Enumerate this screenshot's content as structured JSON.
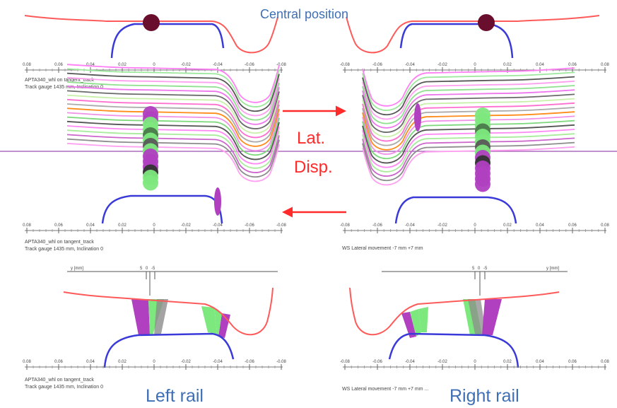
{
  "title": "Central position",
  "lateral_label_line1": "Lat.",
  "lateral_label_line2": "Disp.",
  "left_rail_label": "Left rail",
  "right_rail_label": "Right rail",
  "axis_ticks_left": [
    "0.08",
    "0.06",
    "0.04",
    "0.02",
    "0",
    "-0.02",
    "-0.04",
    "-0.06",
    "-0.08"
  ],
  "axis_ticks_right": [
    "-0.08",
    "-0.06",
    "-0.04",
    "-0.02",
    "0",
    "0.02",
    "0.04",
    "0.06",
    "0.08"
  ],
  "captions": {
    "top_left_1": "APTA340_whl  on  tangent_track",
    "top_left_2": "Track gauge 1435 mm, Inclination 0",
    "mid_left_1": "APTA340_whl  on  tangent_track",
    "mid_left_2": "Track gauge 1435 mm, Inclination 0",
    "mid_right_1": "WS Lateral movement -7 mm +7 mm",
    "bot_left_1": "APTA340_whl  on  tangent_track",
    "bot_left_2": "Track gauge 1435 mm, Inclination 0",
    "bot_right_1": "WS Lateral movement -7 mm +7 mm  ..."
  },
  "y_axis_label": "y [mm]",
  "y_markers": [
    "5",
    "0",
    "-5"
  ],
  "colors": {
    "wheel_profile": "#ff5a5a",
    "rail_profile": "#3a3ad8",
    "contact_center": "#6a0e2e",
    "contact_green": "#7de87d",
    "contact_purple": "#b040c0",
    "arrow": "#ff2a2a",
    "title_text": "#3f6fb4",
    "horizontal_line": "#9b4fb0"
  },
  "layer_colors": [
    "#ff7ff5",
    "#9ce89c",
    "#555555",
    "#ff9ff0",
    "#8fe08f",
    "#ee77ee",
    "#6a6a6a",
    "#c8f0a8",
    "#ff6fd0",
    "#aaaaaa",
    "#ff8c1a",
    "#f090e8",
    "#7bd87b",
    "#555555",
    "#ff88f4",
    "#a8ec9c",
    "#cc66cc",
    "#8c8c8c",
    "#ffa0f0"
  ]
}
